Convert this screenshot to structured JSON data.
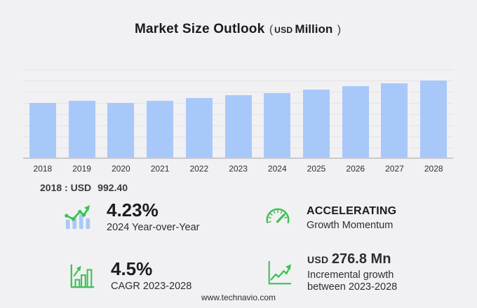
{
  "header": {
    "title": "Market Size Outlook",
    "open_paren": "(",
    "unit_prefix": "USD",
    "unit": "Million",
    "close_paren": ")"
  },
  "chart_data": {
    "type": "bar",
    "title": "Market Size Outlook (USD Million)",
    "unit": "USD Million",
    "categories": [
      "2018",
      "2019",
      "2020",
      "2021",
      "2022",
      "2023",
      "2024",
      "2025",
      "2026",
      "2027",
      "2028"
    ],
    "values": [
      992.4,
      1030.9,
      988.1,
      1027.6,
      1080.8,
      1125.4,
      1173.0,
      1226.1,
      1290.7,
      1344.6,
      1402.2
    ],
    "xlabel": "",
    "ylabel": "",
    "ylim": [
      0,
      1600
    ],
    "gridline_step": 200,
    "grid": true,
    "legend": false,
    "bar_color": "#a9c8fa"
  },
  "annotation": {
    "label": "2018 : USD",
    "value": "992.40"
  },
  "stats": [
    {
      "id": "yoy",
      "icon": "bars-trend-icon",
      "value": "4.23%",
      "label": "2024 Year-over-Year"
    },
    {
      "id": "momentum",
      "icon": "gauge-icon",
      "value": "ACCELERATING",
      "label": "Growth Momentum"
    },
    {
      "id": "cagr",
      "icon": "growth-bars-icon",
      "value": "4.5%",
      "label": "CAGR 2023-2028"
    },
    {
      "id": "incremental",
      "icon": "trend-line-icon",
      "value_prefix": "USD",
      "value": "276.8 Mn",
      "label": "Incremental growth",
      "label2": "between 2023-2028"
    }
  ],
  "footer": {
    "url": "www.technavio.com"
  },
  "colors": {
    "background": "#f1f1f3",
    "bar": "#a9c8fa",
    "green": "#3ec155",
    "grid": "#e4e4e8",
    "axis": "#c9c9ce",
    "title": "#1b1b1d",
    "text": "#2d2d2f"
  }
}
